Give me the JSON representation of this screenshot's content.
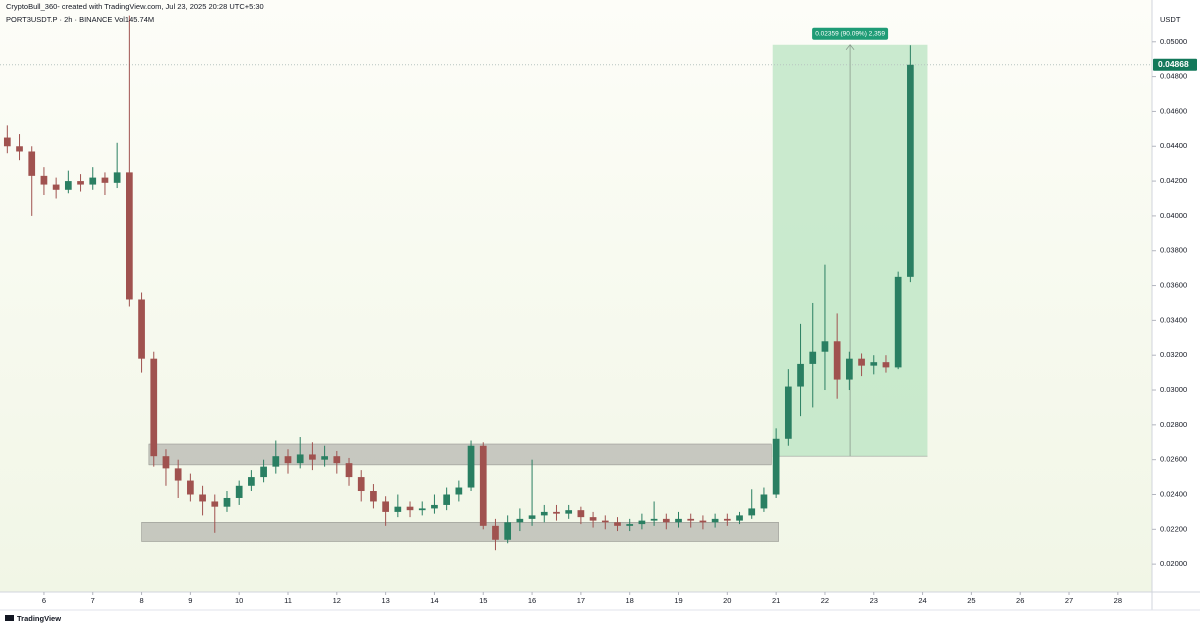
{
  "header": {
    "credit": "CryptoBull_360- created with TradingView.com, Jul 23, 2025 20:28 UTC+5:30",
    "symbol": "PORT3USDT.P · 2h · BINANCE  Vol145.74M"
  },
  "footer": {
    "brand": "TradingView"
  },
  "chart_data": {
    "type": "candlestick",
    "y_unit": "USDT",
    "up_color": "#2a7f62",
    "down_color": "#a0524f",
    "xlim": [
      5.1,
      28.7
    ],
    "ylim": [
      0.0184,
      0.0524
    ],
    "xticks": [
      6,
      7,
      8,
      9,
      10,
      11,
      12,
      13,
      14,
      15,
      16,
      17,
      18,
      19,
      20,
      21,
      22,
      23,
      24,
      25,
      26,
      27,
      28
    ],
    "yticks": [
      {
        "value": 0.02,
        "label": "0.02000"
      },
      {
        "value": 0.022,
        "label": "0.02200"
      },
      {
        "value": 0.024,
        "label": "0.02400"
      },
      {
        "value": 0.026,
        "label": "0.02600"
      },
      {
        "value": 0.028,
        "label": "0.02800"
      },
      {
        "value": 0.03,
        "label": "0.03000"
      },
      {
        "value": 0.032,
        "label": "0.03200"
      },
      {
        "value": 0.034,
        "label": "0.03400"
      },
      {
        "value": 0.036,
        "label": "0.03600"
      },
      {
        "value": 0.038,
        "label": "0.03800"
      },
      {
        "value": 0.04,
        "label": "0.04000"
      },
      {
        "value": 0.042,
        "label": "0.04200"
      },
      {
        "value": 0.044,
        "label": "0.04400"
      },
      {
        "value": 0.046,
        "label": "0.04600"
      },
      {
        "value": 0.048,
        "label": "0.04800"
      },
      {
        "value": 0.05,
        "label": "0.05000"
      }
    ],
    "last_price": {
      "value": 0.04868,
      "label": "0.04868"
    },
    "zones": [
      {
        "low": 0.0257,
        "high": 0.0269,
        "x0": 8.15,
        "x1": 20.9
      },
      {
        "low": 0.0213,
        "high": 0.0224,
        "x0": 8.0,
        "x1": 21.05
      }
    ],
    "position": {
      "entry": 0.0262,
      "target": 0.04983,
      "x0": 20.93,
      "x1": 24.1,
      "label": "0.02359 (90.09%) 2,359"
    },
    "x": [
      5.25,
      5.5,
      5.75,
      6,
      6.25,
      6.5,
      6.75,
      7,
      7.25,
      7.5,
      7.75,
      8,
      8.25,
      8.5,
      8.75,
      9,
      9.25,
      9.5,
      9.75,
      10,
      10.25,
      10.5,
      10.75,
      11,
      11.25,
      11.5,
      11.75,
      12,
      12.25,
      12.5,
      12.75,
      13,
      13.25,
      13.5,
      13.75,
      14,
      14.25,
      14.5,
      14.75,
      15,
      15.25,
      15.5,
      15.75,
      16,
      16.25,
      16.5,
      16.75,
      17,
      17.25,
      17.5,
      17.75,
      18,
      18.25,
      18.5,
      18.75,
      19,
      19.25,
      19.5,
      19.75,
      20,
      20.25,
      20.5,
      20.75,
      21,
      21.25,
      21.5,
      21.75,
      22,
      22.25,
      22.5,
      22.75,
      23,
      23.25,
      23.5,
      23.75
    ],
    "open": [
      0.0445,
      0.044,
      0.0437,
      0.0423,
      0.0418,
      0.0415,
      0.042,
      0.0418,
      0.0422,
      0.0419,
      0.0425,
      0.0352,
      0.0318,
      0.0262,
      0.0255,
      0.0248,
      0.024,
      0.0236,
      0.0233,
      0.0238,
      0.0245,
      0.025,
      0.0256,
      0.0262,
      0.0258,
      0.0263,
      0.026,
      0.0262,
      0.0258,
      0.025,
      0.0242,
      0.0236,
      0.023,
      0.0233,
      0.0231,
      0.0232,
      0.0234,
      0.024,
      0.0244,
      0.0268,
      0.0222,
      0.0214,
      0.0224,
      0.0226,
      0.0228,
      0.023,
      0.0229,
      0.0231,
      0.0227,
      0.0225,
      0.0224,
      0.0222,
      0.0223,
      0.0225,
      0.0226,
      0.0224,
      0.0226,
      0.0225,
      0.0224,
      0.0226,
      0.0225,
      0.0228,
      0.0232,
      0.024,
      0.0272,
      0.0302,
      0.0315,
      0.0322,
      0.0328,
      0.0306,
      0.0318,
      0.0314,
      0.0316,
      0.0313,
      0.0365
    ],
    "high": [
      0.0452,
      0.0447,
      0.044,
      0.0428,
      0.0422,
      0.0426,
      0.0424,
      0.0428,
      0.0425,
      0.0442,
      0.0515,
      0.0356,
      0.0322,
      0.0266,
      0.026,
      0.0252,
      0.0245,
      0.024,
      0.0242,
      0.0248,
      0.0254,
      0.026,
      0.0271,
      0.0266,
      0.0273,
      0.027,
      0.0268,
      0.0265,
      0.0261,
      0.0254,
      0.0246,
      0.0239,
      0.024,
      0.0236,
      0.0236,
      0.024,
      0.0244,
      0.0248,
      0.0271,
      0.027,
      0.0226,
      0.0228,
      0.0232,
      0.026,
      0.0234,
      0.0234,
      0.0234,
      0.0233,
      0.023,
      0.0228,
      0.0227,
      0.0226,
      0.0229,
      0.0236,
      0.0229,
      0.023,
      0.0229,
      0.0228,
      0.0229,
      0.0229,
      0.023,
      0.0243,
      0.0244,
      0.0278,
      0.0312,
      0.0338,
      0.035,
      0.0372,
      0.0344,
      0.0322,
      0.0321,
      0.032,
      0.032,
      0.0368,
      0.0498
    ],
    "low": [
      0.0436,
      0.0432,
      0.04,
      0.0412,
      0.041,
      0.0413,
      0.0414,
      0.0415,
      0.0412,
      0.0416,
      0.0348,
      0.031,
      0.0256,
      0.0245,
      0.0238,
      0.0236,
      0.0228,
      0.0218,
      0.023,
      0.0234,
      0.0242,
      0.0247,
      0.0252,
      0.0252,
      0.0255,
      0.0254,
      0.0256,
      0.0252,
      0.0245,
      0.0236,
      0.0232,
      0.0222,
      0.0227,
      0.0227,
      0.0228,
      0.0229,
      0.0231,
      0.0236,
      0.0242,
      0.022,
      0.0208,
      0.0212,
      0.0219,
      0.0222,
      0.0224,
      0.0225,
      0.0226,
      0.0223,
      0.0221,
      0.022,
      0.0219,
      0.0219,
      0.022,
      0.0222,
      0.022,
      0.0221,
      0.0221,
      0.022,
      0.0221,
      0.0222,
      0.0223,
      0.0226,
      0.023,
      0.0238,
      0.0268,
      0.0285,
      0.029,
      0.03,
      0.0295,
      0.03,
      0.0308,
      0.0309,
      0.031,
      0.0312,
      0.0362
    ],
    "close": [
      0.044,
      0.0437,
      0.0423,
      0.0418,
      0.0415,
      0.042,
      0.0418,
      0.0422,
      0.0419,
      0.0425,
      0.0352,
      0.0318,
      0.0262,
      0.0255,
      0.0248,
      0.024,
      0.0236,
      0.0233,
      0.0238,
      0.0245,
      0.025,
      0.0256,
      0.0262,
      0.0258,
      0.0263,
      0.026,
      0.0262,
      0.0258,
      0.025,
      0.0242,
      0.0236,
      0.023,
      0.0233,
      0.0231,
      0.0232,
      0.0234,
      0.024,
      0.0244,
      0.0268,
      0.0222,
      0.0214,
      0.0224,
      0.0226,
      0.0228,
      0.023,
      0.0229,
      0.0231,
      0.0227,
      0.0225,
      0.0224,
      0.0222,
      0.0223,
      0.0225,
      0.0226,
      0.0224,
      0.0226,
      0.0225,
      0.0224,
      0.0226,
      0.0225,
      0.0228,
      0.0232,
      0.024,
      0.0272,
      0.0302,
      0.0315,
      0.0322,
      0.0328,
      0.0306,
      0.0318,
      0.0314,
      0.0316,
      0.0313,
      0.0365,
      0.04868
    ]
  }
}
